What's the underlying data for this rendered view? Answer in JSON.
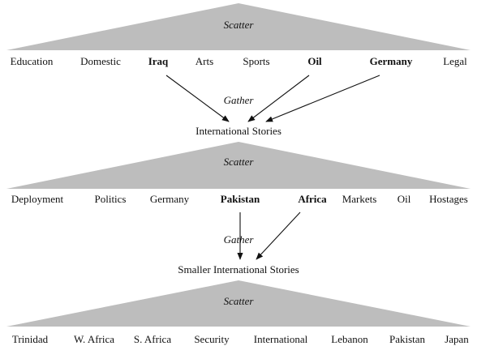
{
  "colors": {
    "triangle": "#bdbdbd",
    "text": "#111111",
    "background": "#ffffff"
  },
  "levels": [
    {
      "scatter_label": "Scatter",
      "clusters": [
        {
          "label": "Education",
          "bold": false
        },
        {
          "label": "Domestic",
          "bold": false
        },
        {
          "label": "Iraq",
          "bold": true
        },
        {
          "label": "Arts",
          "bold": false
        },
        {
          "label": "Sports",
          "bold": false
        },
        {
          "label": "Oil",
          "bold": true
        },
        {
          "label": "Germany",
          "bold": true
        },
        {
          "label": "Legal",
          "bold": false
        }
      ],
      "gather_label": "Gather",
      "result": "International Stories"
    },
    {
      "scatter_label": "Scatter",
      "clusters": [
        {
          "label": "Deployment",
          "bold": false
        },
        {
          "label": "Politics",
          "bold": false
        },
        {
          "label": "Germany",
          "bold": false
        },
        {
          "label": "Pakistan",
          "bold": true
        },
        {
          "label": "Africa",
          "bold": true
        },
        {
          "label": "Markets",
          "bold": false
        },
        {
          "label": "Oil",
          "bold": false
        },
        {
          "label": "Hostages",
          "bold": false
        }
      ],
      "gather_label": "Gather",
      "result": "Smaller International Stories"
    },
    {
      "scatter_label": "Scatter",
      "clusters": [
        {
          "label": "Trinidad",
          "bold": false
        },
        {
          "label": "W. Africa",
          "bold": false
        },
        {
          "label": "S. Africa",
          "bold": false
        },
        {
          "label": "Security",
          "bold": false
        },
        {
          "label": "International",
          "bold": false
        },
        {
          "label": "Lebanon",
          "bold": false
        },
        {
          "label": "Pakistan",
          "bold": false
        },
        {
          "label": "Japan",
          "bold": false
        }
      ]
    }
  ]
}
